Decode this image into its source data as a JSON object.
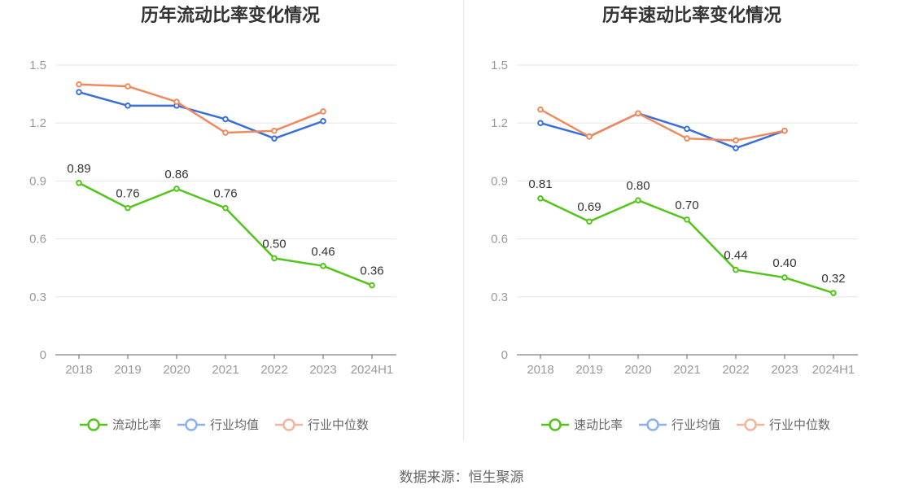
{
  "colors": {
    "primary": "#52c41a",
    "average": "#3a6fd8",
    "median": "#ef8a5e"
  },
  "source_text": "数据来源：恒生聚源",
  "chart_data": [
    {
      "type": "line",
      "title": "历年流动比率变化情况",
      "x": [
        "2018",
        "2019",
        "2020",
        "2021",
        "2022",
        "2023",
        "2024H1"
      ],
      "ylim": [
        0,
        1.5
      ],
      "yticks": [
        "0",
        "0.3",
        "0.6",
        "0.9",
        "1.2",
        "1.5"
      ],
      "grid": true,
      "legend_position": "bottom",
      "series": [
        {
          "name": "流动比率",
          "color": "#52c41a",
          "labels": true,
          "values": [
            0.89,
            0.76,
            0.86,
            0.76,
            0.5,
            0.46,
            0.36
          ],
          "value_labels": [
            "0.89",
            "0.76",
            "0.86",
            "0.76",
            "0.50",
            "0.46",
            "0.36"
          ]
        },
        {
          "name": "行业均值",
          "color": "#3a6fd8",
          "labels": false,
          "values": [
            1.36,
            1.29,
            1.29,
            1.22,
            1.12,
            1.21,
            null
          ]
        },
        {
          "name": "行业中位数",
          "color": "#ef8a5e",
          "labels": false,
          "values": [
            1.4,
            1.39,
            1.31,
            1.15,
            1.16,
            1.26,
            null
          ]
        }
      ]
    },
    {
      "type": "line",
      "title": "历年速动比率变化情况",
      "x": [
        "2018",
        "2019",
        "2020",
        "2021",
        "2022",
        "2023",
        "2024H1"
      ],
      "ylim": [
        0,
        1.5
      ],
      "yticks": [
        "0",
        "0.3",
        "0.6",
        "0.9",
        "1.2",
        "1.5"
      ],
      "grid": true,
      "legend_position": "bottom",
      "series": [
        {
          "name": "速动比率",
          "color": "#52c41a",
          "labels": true,
          "values": [
            0.81,
            0.69,
            0.8,
            0.7,
            0.44,
            0.4,
            0.32
          ],
          "value_labels": [
            "0.81",
            "0.69",
            "0.80",
            "0.70",
            "0.44",
            "0.40",
            "0.32"
          ]
        },
        {
          "name": "行业均值",
          "color": "#3a6fd8",
          "labels": false,
          "values": [
            1.2,
            1.13,
            1.25,
            1.17,
            1.07,
            1.16,
            null
          ]
        },
        {
          "name": "行业中位数",
          "color": "#ef8a5e",
          "labels": false,
          "values": [
            1.27,
            1.13,
            1.25,
            1.12,
            1.11,
            1.16,
            null
          ]
        }
      ]
    }
  ]
}
